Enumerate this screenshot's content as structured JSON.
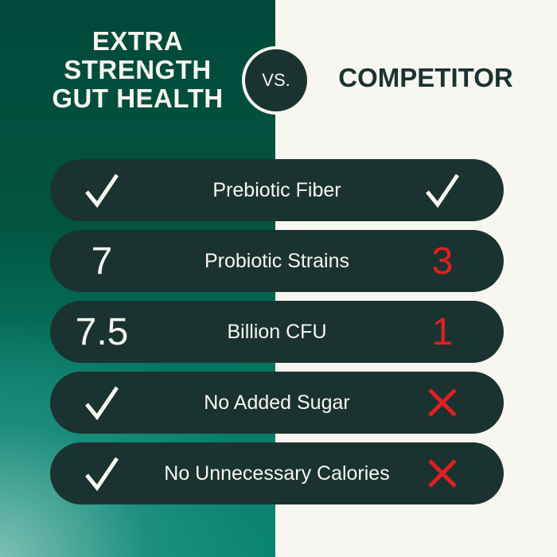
{
  "header": {
    "left_title": [
      "EXTRA",
      "STRENGTH",
      "GUT HEALTH"
    ],
    "vs_label": "VS.",
    "right_title": "COMPETITOR"
  },
  "colors": {
    "pill": "#1b3330",
    "cross": "#e02020",
    "cream": "#f8f6f0",
    "green_dark": "#01493a",
    "teal_light": "#82c4b8"
  },
  "rows": [
    {
      "label": "Prebiotic Fiber",
      "ours": {
        "type": "check-icon"
      },
      "competitor": {
        "type": "check-icon"
      }
    },
    {
      "label": "Probiotic Strains",
      "ours": {
        "type": "text",
        "value": "7"
      },
      "competitor": {
        "type": "text",
        "value": "3"
      }
    },
    {
      "label": "Billion CFU",
      "ours": {
        "type": "text",
        "value": "7.5"
      },
      "competitor": {
        "type": "text",
        "value": "1"
      }
    },
    {
      "label": "No Added Sugar",
      "ours": {
        "type": "check-icon"
      },
      "competitor": {
        "type": "cross-icon"
      }
    },
    {
      "label": "No Unnecessary Calories",
      "ours": {
        "type": "check-icon"
      },
      "competitor": {
        "type": "cross-icon"
      }
    }
  ]
}
